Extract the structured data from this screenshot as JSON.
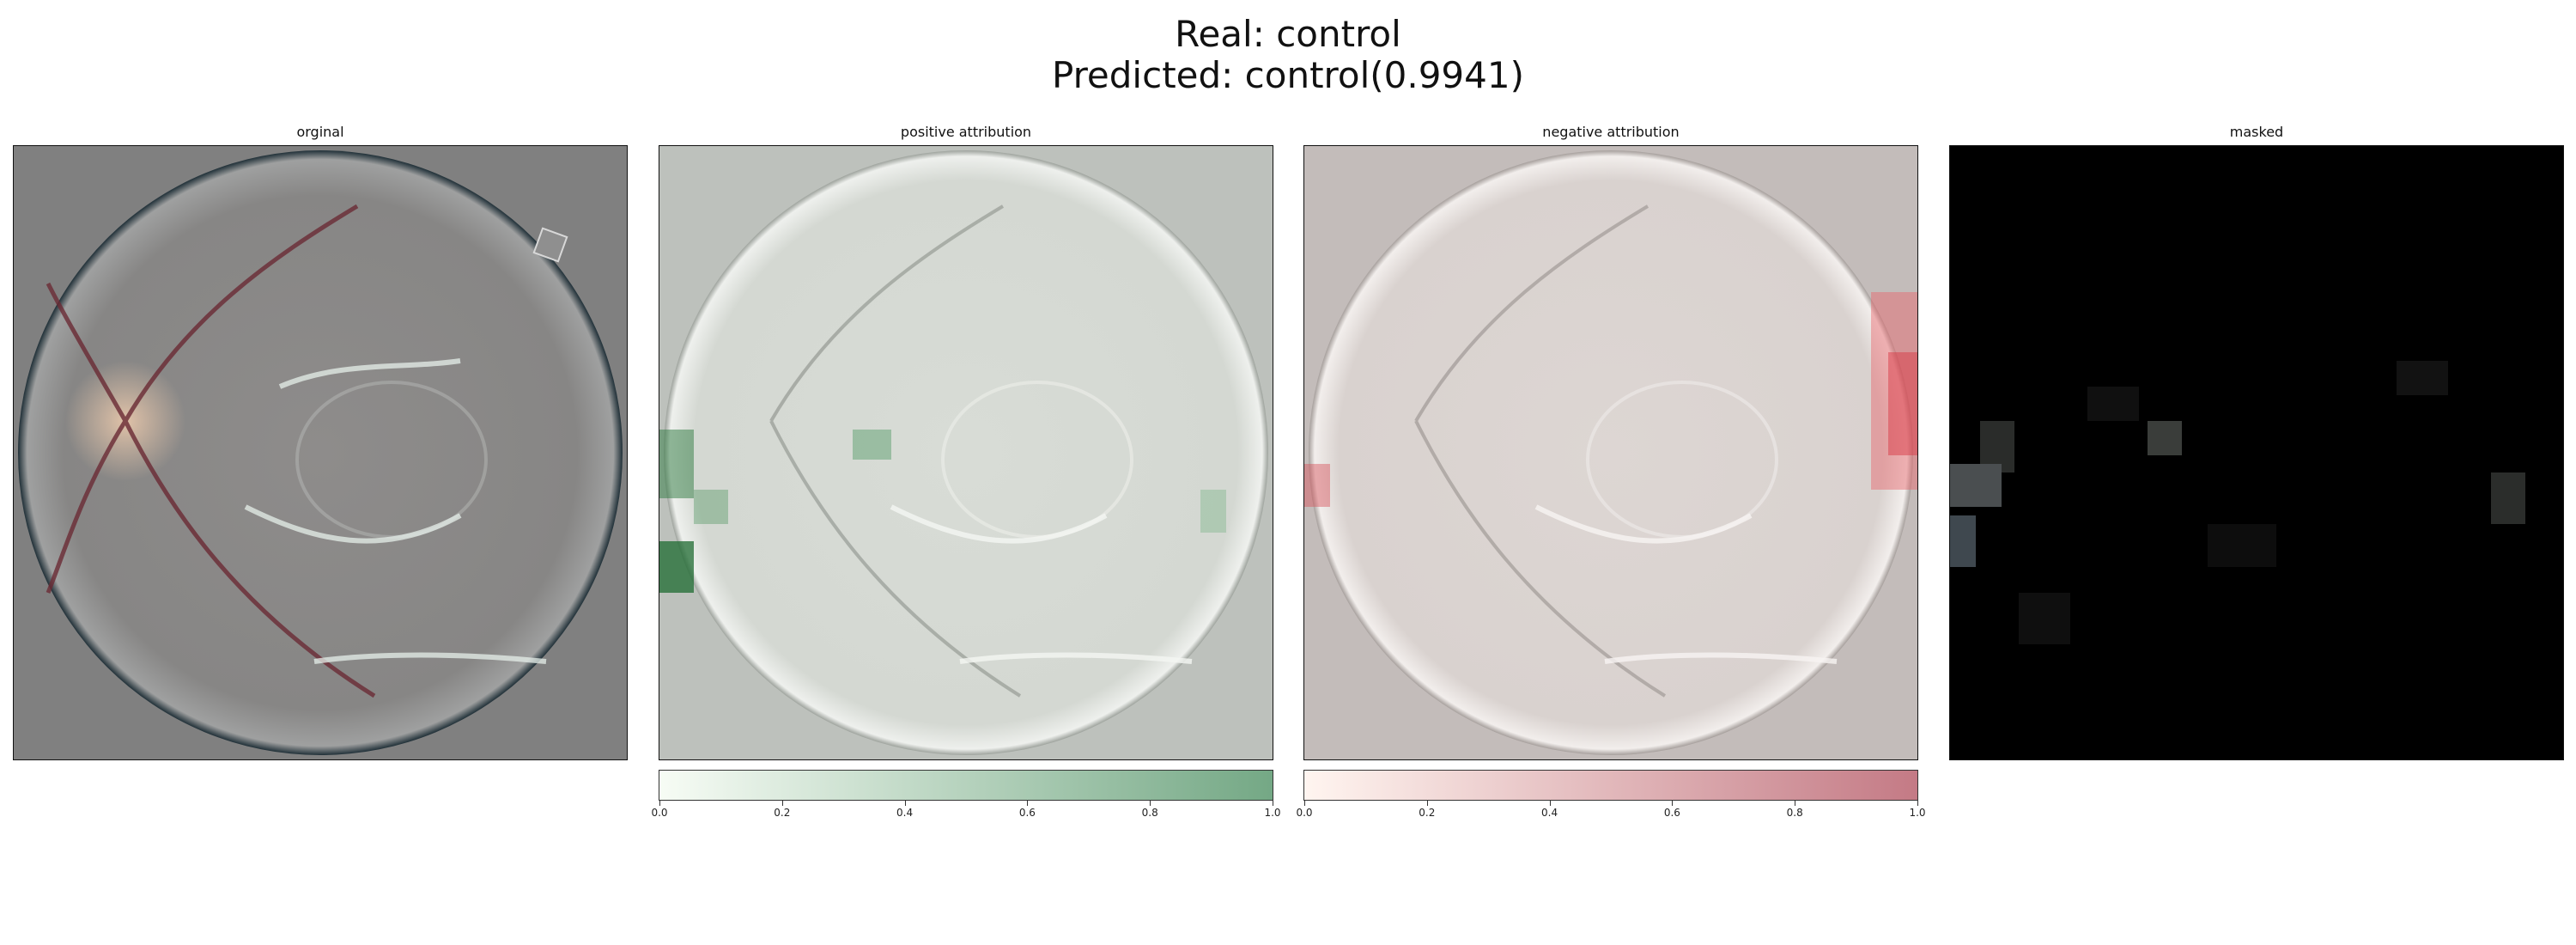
{
  "figure": {
    "title_line1": "Real: control",
    "title_line2": "Predicted: control(0.9941)"
  },
  "panels": [
    {
      "title": "orginal"
    },
    {
      "title": "positive attribution"
    },
    {
      "title": "negative attribution"
    },
    {
      "title": "masked"
    }
  ],
  "colorbars": [
    {
      "panel": "positive attribution",
      "color_from": "#f7fcf5",
      "color_to": "#74a885",
      "ticks": [
        "0.0",
        "0.2",
        "0.4",
        "0.6",
        "0.8",
        "1.0"
      ]
    },
    {
      "panel": "negative attribution",
      "color_from": "#fff5f0",
      "color_to": "#c47a85",
      "ticks": [
        "0.0",
        "0.2",
        "0.4",
        "0.6",
        "0.8",
        "1.0"
      ]
    }
  ],
  "colors": {
    "original_bg": "#808080",
    "positive_bg": "#bdc1bc",
    "negative_bg": "#c3bcba",
    "masked_bg": "#000000"
  }
}
